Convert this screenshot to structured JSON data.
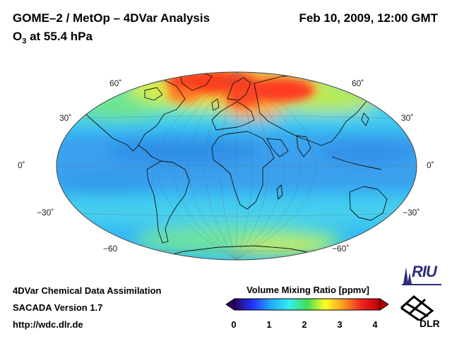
{
  "header": {
    "title": "GOME–2 / MetOp – 4DVar Analysis",
    "datetime": "Feb 10, 2009, 12:00 GMT",
    "species": "O",
    "species_subscript": "3",
    "level": "at 55.4 hPa"
  },
  "map": {
    "projection": "Hammer",
    "latitude_labels_left": [
      "60˚",
      "30˚",
      "0˚",
      "−30˚",
      "−60"
    ],
    "latitude_labels_right": [
      "60˚",
      "30˚",
      "0˚",
      "−30˚",
      "−60˚"
    ]
  },
  "colorbar": {
    "title": "Volume Mixing Ratio [ppmv]",
    "ticks": [
      "0",
      "1",
      "2",
      "3",
      "4"
    ],
    "min": 0,
    "max": 4,
    "colors": [
      "#2a0060",
      "#2233ff",
      "#22aaff",
      "#33eeee",
      "#44dd55",
      "#ffff22",
      "#ff9922",
      "#ee2222",
      "#bb0000"
    ]
  },
  "footer": {
    "line1": "4DVar Chemical Data Assimilation",
    "line2": "SACADA Version 1.7",
    "line3": "http://wdc.dlr.de"
  },
  "logos": {
    "riu": "RIU",
    "dlr": "DLR"
  }
}
